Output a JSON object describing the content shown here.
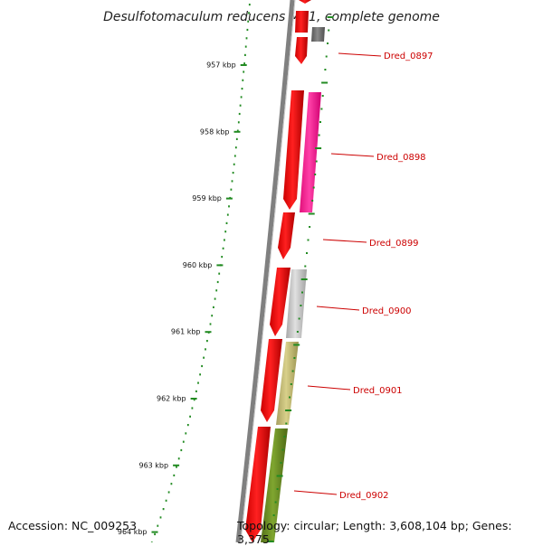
{
  "title": "Desulfotomaculum reducens MI-1, complete genome",
  "footer": {
    "accession": "Accession: NC_009253",
    "topology": "Topology: circular; Length: 3,608,104 bp; Genes: 3,375"
  },
  "ruler": {
    "tick_labels": [
      "957 kbp",
      "958 kbp",
      "959 kbp",
      "960 kbp",
      "961 kbp",
      "962 kbp",
      "963 kbp",
      "964 kbp"
    ]
  },
  "genes": [
    {
      "id": "Dred_0897",
      "label": "Dred_0897",
      "label_color": "#cc0000"
    },
    {
      "id": "Dred_0898",
      "label": "Dred_0898",
      "label_color": "#cc0000"
    },
    {
      "id": "Dred_0899",
      "label": "Dred_0899",
      "label_color": "#cc0000"
    },
    {
      "id": "Dred_0900",
      "label": "Dred_0900",
      "label_color": "#cc0000"
    },
    {
      "id": "Dred_0901",
      "label": "Dred_0901",
      "label_color": "#cc0000"
    },
    {
      "id": "Dred_0902",
      "label": "Dred_0902",
      "label_color": "#cc0000"
    }
  ],
  "colors": {
    "backbone": "#808080",
    "cds": "#ff0000",
    "cog_magenta": "#ff1493",
    "cog_gray_light": "#c0c0c0",
    "cog_gray_dark": "#707070",
    "cog_khaki": "#bdb76b",
    "cog_olive": "#6b8e23",
    "ruler_ticks": "#228b22"
  }
}
